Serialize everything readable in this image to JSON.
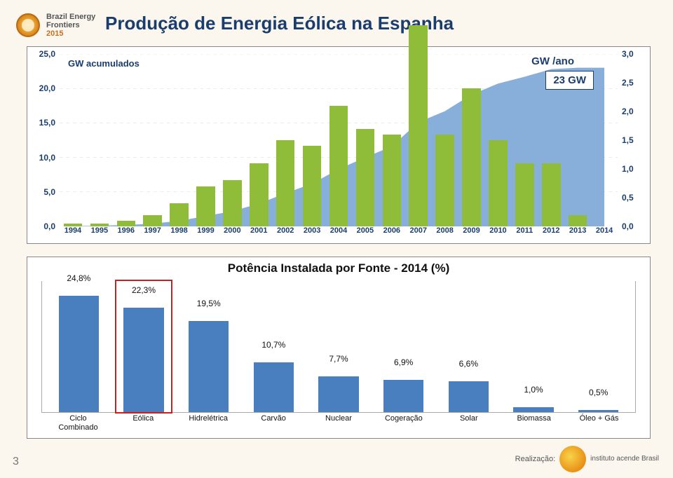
{
  "logo": {
    "line1": "Brazil Energy",
    "line2": "Frontiers",
    "year": "2015"
  },
  "title": "Produção de Energia Eólica na Espanha",
  "main_chart": {
    "cum_label": "GW acumulados",
    "annual_label": "GW /ano",
    "badge": "23 GW",
    "y_left": {
      "min": 0,
      "max": 25,
      "step": 5,
      "ticks": [
        "0,0",
        "5,0",
        "10,0",
        "15,0",
        "20,0",
        "25,0"
      ]
    },
    "y_right": {
      "min": 0,
      "max": 3,
      "step": 0.5,
      "ticks": [
        "0,0",
        "0,5",
        "1,0",
        "1,5",
        "2,0",
        "2,5",
        "3,0"
      ]
    },
    "years": [
      "1994",
      "1995",
      "1996",
      "1997",
      "1998",
      "1999",
      "2000",
      "2001",
      "2002",
      "2003",
      "2004",
      "2005",
      "2006",
      "2007",
      "2008",
      "2009",
      "2010",
      "2011",
      "2012",
      "2013",
      "2014"
    ],
    "cumulative": [
      0.05,
      0.1,
      0.2,
      0.4,
      0.8,
      1.5,
      2.2,
      3.3,
      4.8,
      6.2,
      8.3,
      10.0,
      11.6,
      15.1,
      16.7,
      19.1,
      20.7,
      21.7,
      22.8,
      23.0,
      23.0
    ],
    "annual": [
      0.05,
      0.05,
      0.1,
      0.2,
      0.4,
      0.7,
      0.8,
      1.1,
      1.5,
      1.4,
      2.1,
      1.7,
      1.6,
      3.5,
      1.6,
      2.4,
      1.5,
      1.1,
      1.1,
      0.2,
      0.0
    ],
    "area_color": "#7aa6d6",
    "bar_color": "#8fbd3a",
    "grid_color": "#d8d8d8"
  },
  "second_chart": {
    "title": "Potência Instalada por Fonte - 2014 (%)",
    "categories": [
      "Ciclo\nCombinado",
      "Eólica",
      "Hidrelétrica",
      "Carvão",
      "Nuclear",
      "Cogeração",
      "Solar",
      "Biomassa",
      "Óleo + Gás"
    ],
    "values": [
      24.8,
      22.3,
      19.5,
      10.7,
      7.7,
      6.9,
      6.6,
      1.0,
      0.5
    ],
    "value_labels": [
      "24,8%",
      "22,3%",
      "19,5%",
      "10,7%",
      "7,7%",
      "6,9%",
      "6,6%",
      "1,0%",
      "0,5%"
    ],
    "bar_color": "#4a7fbf",
    "highlight_index": 1,
    "highlight_color": "#c22222",
    "ymax": 28
  },
  "page_number": "3",
  "footer": {
    "text": "Realização:",
    "brand": "instituto acende Brasil"
  }
}
